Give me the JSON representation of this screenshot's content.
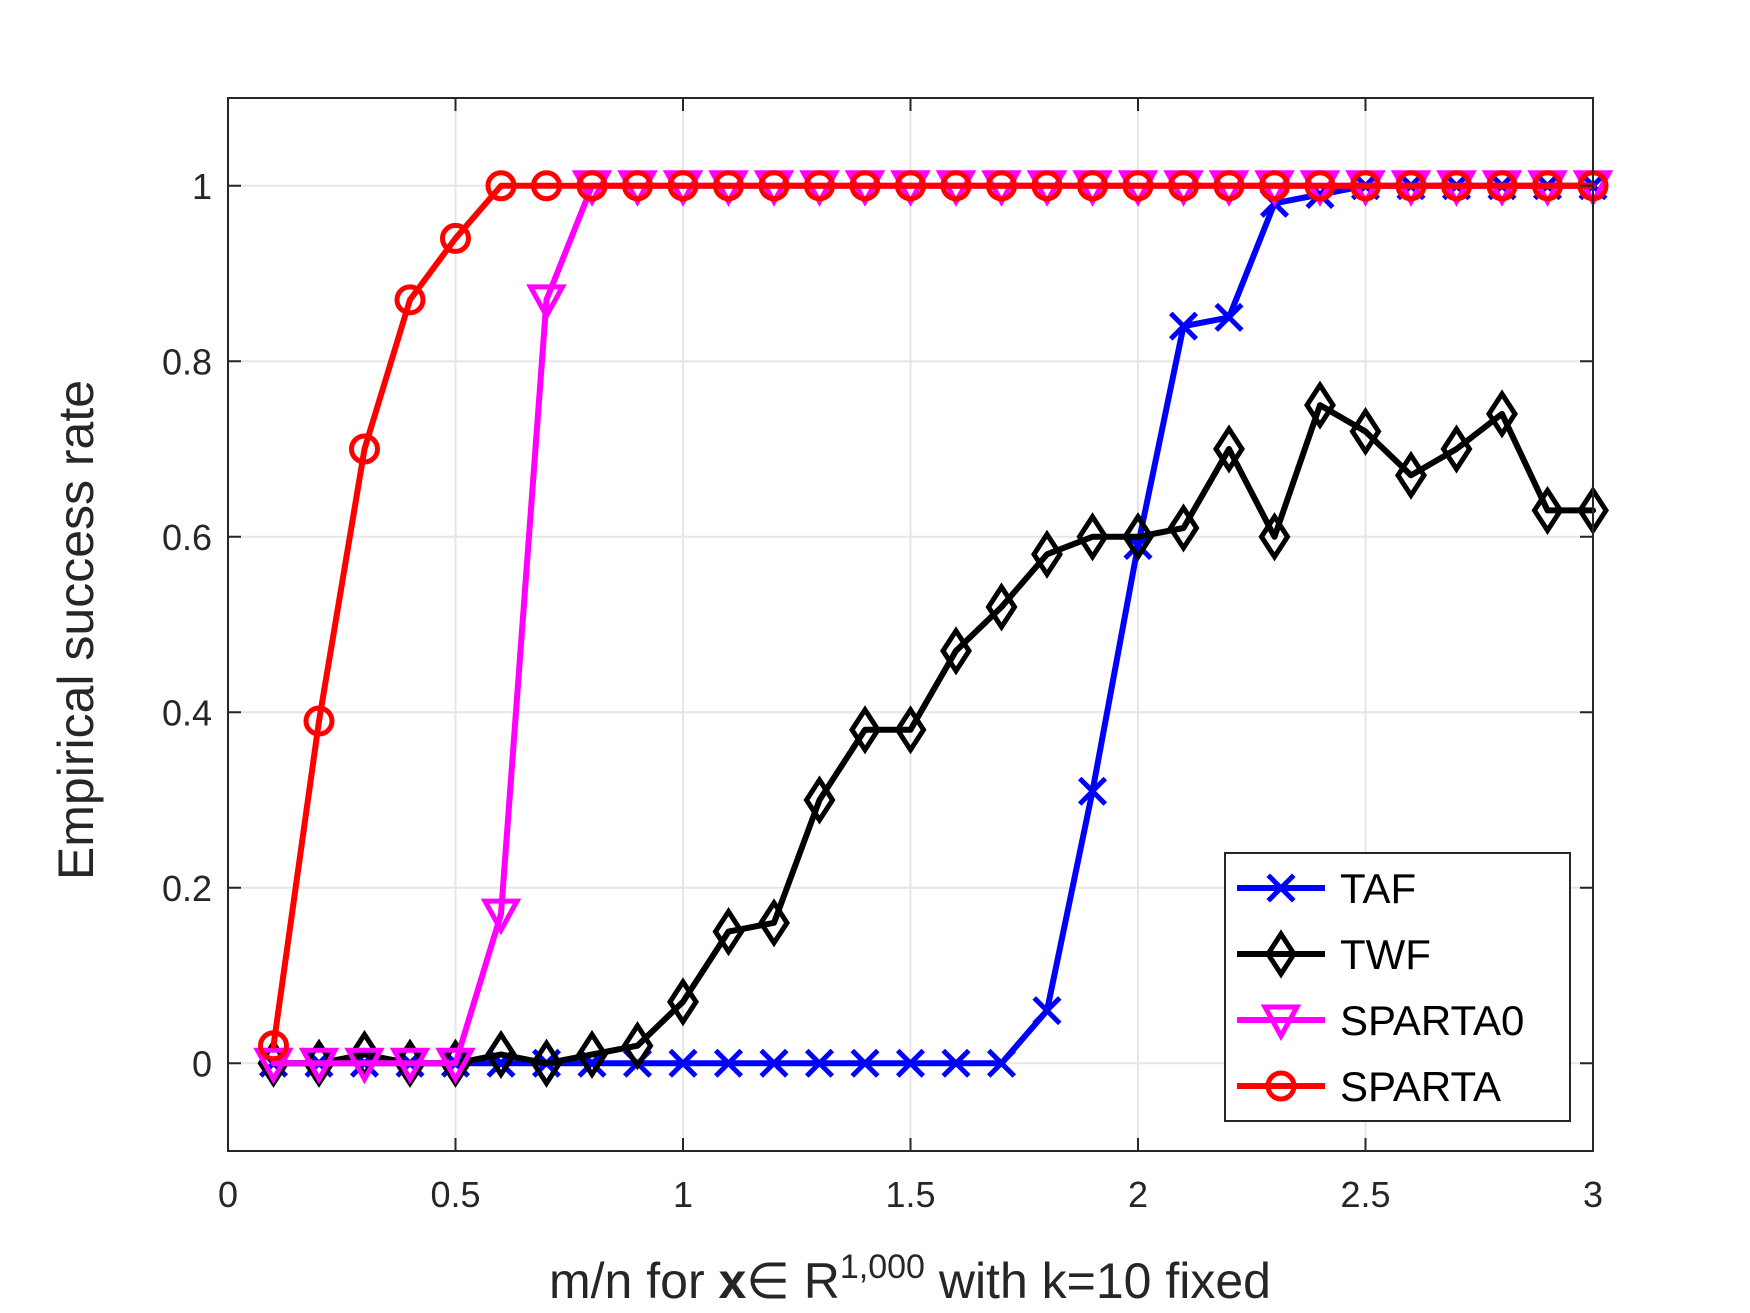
{
  "chart_data": {
    "type": "line",
    "xlabel": {
      "prefix": "m/n for ",
      "bold": "x",
      "mid": "∈ R",
      "sup": "1,000",
      "suffix": " with k=10 fixed"
    },
    "ylabel": "Empirical success rate",
    "xlim": [
      0,
      3
    ],
    "ylim": [
      -0.1,
      1.1
    ],
    "xticks": [
      0,
      0.5,
      1,
      1.5,
      2,
      2.5,
      3
    ],
    "xtick_labels": [
      "0",
      "0.5",
      "1",
      "1.5",
      "2",
      "2.5",
      "3"
    ],
    "yticks": [
      0,
      0.2,
      0.4,
      0.6,
      0.8,
      1
    ],
    "ytick_labels": [
      "0",
      "0.2",
      "0.4",
      "0.6",
      "0.8",
      "1"
    ],
    "grid": true,
    "legend_position": "bottom-right",
    "x": [
      0.1,
      0.2,
      0.3,
      0.4,
      0.5,
      0.6,
      0.7,
      0.8,
      0.9,
      1.0,
      1.1,
      1.2,
      1.3,
      1.4,
      1.5,
      1.6,
      1.7,
      1.8,
      1.9,
      2.0,
      2.1,
      2.2,
      2.3,
      2.4,
      2.5,
      2.6,
      2.7,
      2.8,
      2.9,
      3.0
    ],
    "series": [
      {
        "name": "TAF",
        "color": "#0000ff",
        "marker": "x",
        "values": [
          0,
          0,
          0,
          0,
          0,
          0,
          0,
          0,
          0,
          0,
          0,
          0,
          0,
          0,
          0,
          0,
          0,
          0.06,
          0.31,
          0.59,
          0.84,
          0.85,
          0.98,
          0.99,
          1,
          1,
          1,
          1,
          1,
          1
        ]
      },
      {
        "name": "TWF",
        "color": "#000000",
        "marker": "diamond",
        "values": [
          0,
          0,
          0.01,
          0,
          0,
          0.01,
          0,
          0.01,
          0.02,
          0.07,
          0.15,
          0.16,
          0.3,
          0.38,
          0.38,
          0.47,
          0.52,
          0.58,
          0.6,
          0.6,
          0.61,
          0.7,
          0.6,
          0.75,
          0.72,
          0.67,
          0.7,
          0.74,
          0.63,
          0.63
        ]
      },
      {
        "name": "SPARTA0",
        "color": "#ff00ff",
        "marker": "triangle-down",
        "values": [
          0,
          0,
          0,
          0,
          0,
          0.17,
          0.87,
          1,
          1,
          1,
          1,
          1,
          1,
          1,
          1,
          1,
          1,
          1,
          1,
          1,
          1,
          1,
          1,
          1,
          1,
          1,
          1,
          1,
          1,
          1
        ]
      },
      {
        "name": "SPARTA",
        "color": "#ff0000",
        "marker": "circle",
        "values": [
          0.02,
          0.39,
          0.7,
          0.87,
          0.94,
          1,
          1,
          1,
          1,
          1,
          1,
          1,
          1,
          1,
          1,
          1,
          1,
          1,
          1,
          1,
          1,
          1,
          1,
          1,
          1,
          1,
          1,
          1,
          1,
          1
        ]
      }
    ]
  }
}
